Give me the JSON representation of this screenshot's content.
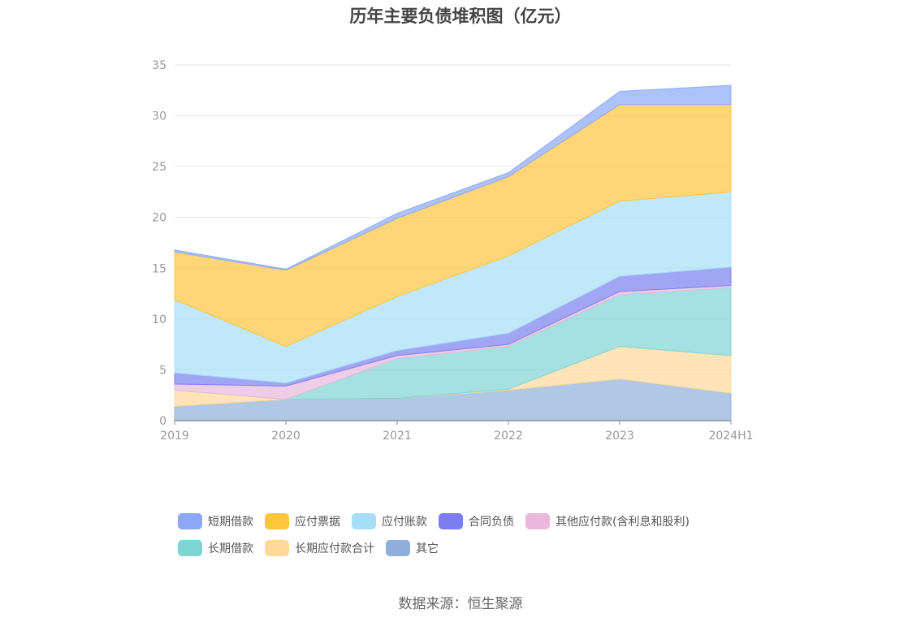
{
  "chart_data": {
    "type": "area",
    "stacked": true,
    "title": "历年主要负债堆积图（亿元）",
    "categories": [
      "2019",
      "2020",
      "2021",
      "2022",
      "2023",
      "2024H1"
    ],
    "ylim": [
      0,
      35
    ],
    "yticks": [
      0,
      5,
      10,
      15,
      20,
      25,
      30,
      35
    ],
    "grid": true,
    "legend_position": "bottom",
    "series": [
      {
        "name": "其它",
        "color": "#8fafdc",
        "values": [
          1.4,
          2.1,
          2.2,
          3.0,
          4.1,
          2.7
        ]
      },
      {
        "name": "长期应付款合计",
        "color": "#ffd99a",
        "values": [
          1.6,
          0.0,
          0.0,
          0.1,
          3.2,
          3.7
        ]
      },
      {
        "name": "长期借款",
        "color": "#7fd4d4",
        "values": [
          0.0,
          0.0,
          3.9,
          4.2,
          5.1,
          6.7
        ]
      },
      {
        "name": "其他应付款(含利息和股利)",
        "color": "#eab8dc",
        "values": [
          0.6,
          1.3,
          0.3,
          0.2,
          0.3,
          0.2
        ]
      },
      {
        "name": "合同负债",
        "color": "#7b7ef0",
        "values": [
          1.1,
          0.3,
          0.5,
          1.1,
          1.5,
          1.8
        ]
      },
      {
        "name": "应付账款",
        "color": "#a6def7",
        "values": [
          7.2,
          3.6,
          5.3,
          7.6,
          7.4,
          7.4
        ]
      },
      {
        "name": "应付票据",
        "color": "#ffc53d",
        "values": [
          4.7,
          7.5,
          7.7,
          7.8,
          9.5,
          8.6
        ]
      },
      {
        "name": "短期借款",
        "color": "#8aa8f7",
        "values": [
          0.2,
          0.1,
          0.5,
          0.4,
          1.3,
          1.9
        ]
      }
    ],
    "legend_order": [
      "短期借款",
      "应付票据",
      "应付账款",
      "合同负债",
      "其他应付款(含利息和股利)",
      "长期借款",
      "长期应付款合计",
      "其它"
    ],
    "source": "数据来源：恒生聚源"
  }
}
